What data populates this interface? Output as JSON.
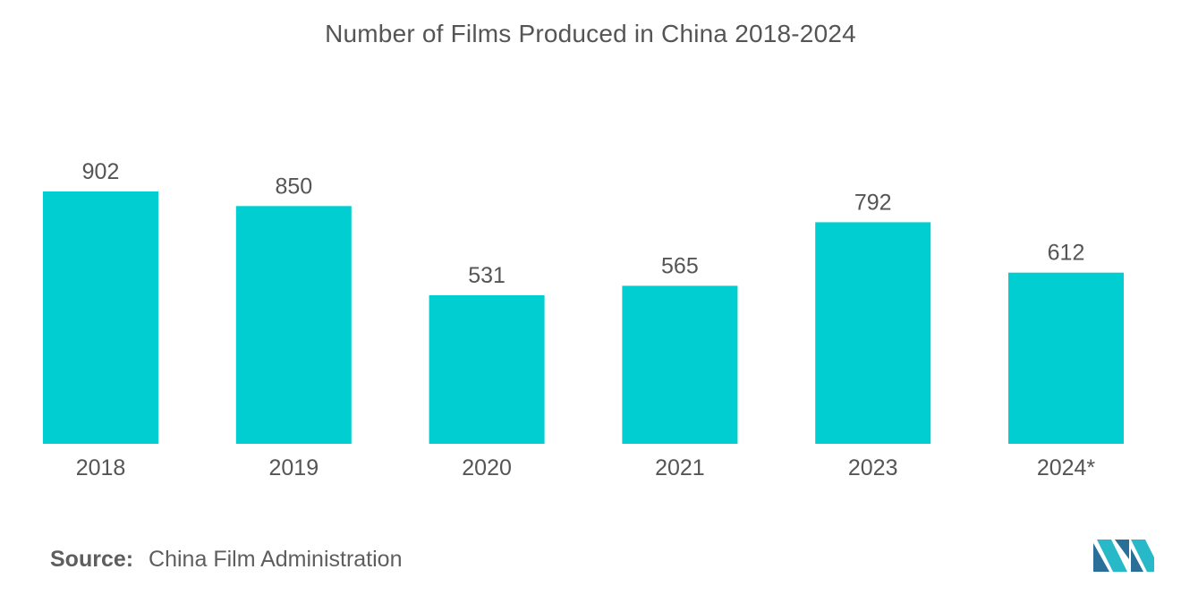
{
  "chart_data": {
    "type": "bar",
    "title": "Number of Films Produced in China 2018-2024",
    "categories": [
      "2018",
      "2019",
      "2020",
      "2021",
      "2023",
      "2024*"
    ],
    "values": [
      902,
      850,
      531,
      565,
      792,
      612
    ],
    "xlabel": "",
    "ylabel": "",
    "ylim": [
      0,
      1000
    ],
    "grid": false,
    "bar_color": "#00CED1",
    "data_labels": true
  },
  "source": {
    "label": "Source:",
    "text": "China Film Administration"
  },
  "colors": {
    "bar": "#00CED1",
    "text": "#555555",
    "logo_dark": "#2a6f97",
    "logo_light": "#27b9c7"
  },
  "logo": {
    "icon": "mordor-intelligence-logo-icon"
  }
}
